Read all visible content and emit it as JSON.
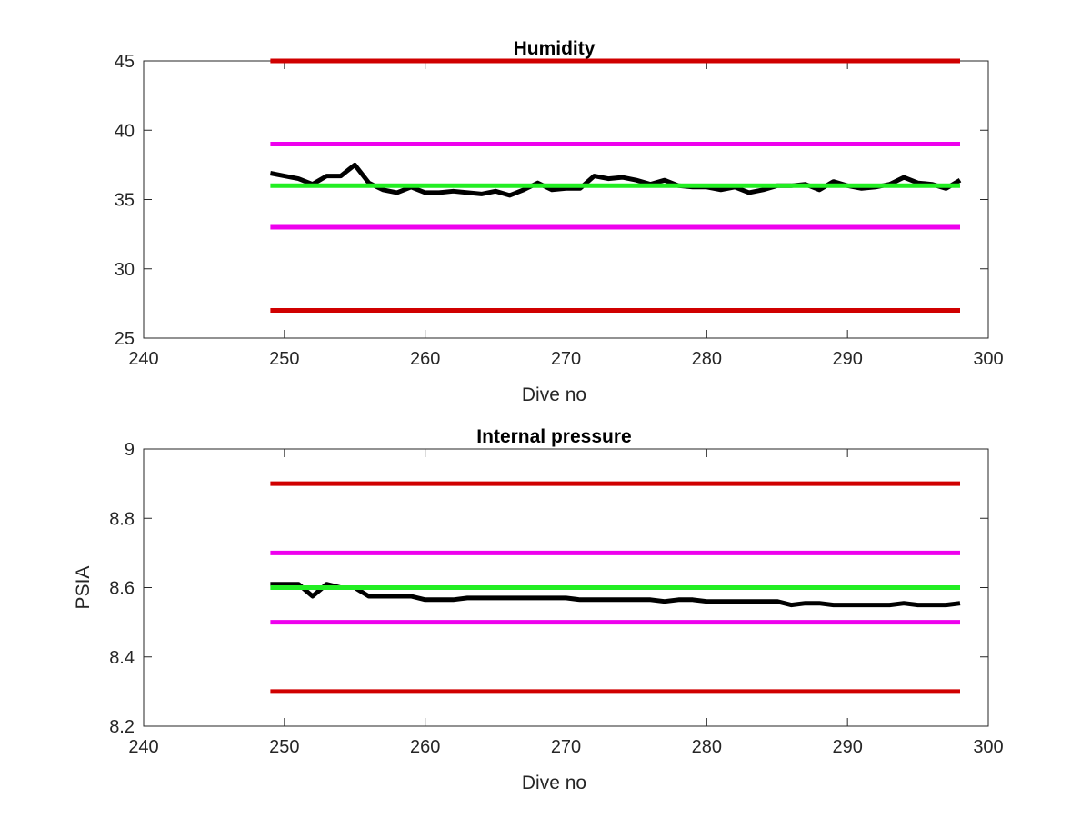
{
  "chart_data": [
    {
      "type": "line",
      "title": "Humidity",
      "xlabel": "Dive no",
      "ylabel": "",
      "xlim": [
        240,
        300
      ],
      "ylim": [
        25,
        45
      ],
      "xticks": [
        "240",
        "250",
        "260",
        "270",
        "280",
        "290",
        "300"
      ],
      "yticks": [
        "25",
        "30",
        "35",
        "40",
        "45"
      ],
      "grid": false,
      "legend": "none",
      "series": [
        {
          "color": "#d00000",
          "x": [
            249,
            298
          ],
          "y": [
            45,
            45
          ]
        },
        {
          "color": "#ee00ee",
          "x": [
            249,
            298
          ],
          "y": [
            39,
            39
          ]
        },
        {
          "color": "#d00000",
          "x": [
            249,
            298
          ],
          "y": [
            27,
            27
          ]
        },
        {
          "color": "#ee00ee",
          "x": [
            249,
            298
          ],
          "y": [
            33,
            33
          ]
        },
        {
          "color": "#000000",
          "x": [
            249,
            250,
            251,
            252,
            253,
            254,
            255,
            256,
            257,
            258,
            259,
            260,
            261,
            262,
            263,
            264,
            265,
            266,
            267,
            268,
            269,
            270,
            271,
            272,
            273,
            274,
            275,
            276,
            277,
            278,
            279,
            280,
            281,
            282,
            283,
            284,
            285,
            286,
            287,
            288,
            289,
            290,
            291,
            292,
            293,
            294,
            295,
            296,
            297,
            298
          ],
          "y": [
            36.9,
            36.7,
            36.5,
            36.1,
            36.7,
            36.7,
            37.5,
            36.2,
            35.7,
            35.5,
            35.9,
            35.5,
            35.5,
            35.6,
            35.5,
            35.4,
            35.6,
            35.3,
            35.7,
            36.2,
            35.7,
            35.8,
            35.8,
            36.7,
            36.5,
            36.6,
            36.4,
            36.1,
            36.4,
            36.0,
            35.9,
            35.9,
            35.7,
            35.9,
            35.5,
            35.7,
            36.0,
            36.0,
            36.1,
            35.7,
            36.3,
            36.0,
            35.8,
            35.9,
            36.1,
            36.6,
            36.2,
            36.1,
            35.8,
            36.4
          ]
        },
        {
          "color": "#22ee22",
          "x": [
            249,
            298
          ],
          "y": [
            36,
            36
          ]
        }
      ]
    },
    {
      "type": "line",
      "title": "Internal pressure",
      "xlabel": "Dive no",
      "ylabel": "PSIA",
      "xlim": [
        240,
        300
      ],
      "ylim": [
        8.2,
        9
      ],
      "xticks": [
        "240",
        "250",
        "260",
        "270",
        "280",
        "290",
        "300"
      ],
      "yticks": [
        "8.2",
        "8.4",
        "8.6",
        "8.8",
        "9"
      ],
      "grid": false,
      "legend": "none",
      "series": [
        {
          "color": "#d00000",
          "x": [
            249,
            298
          ],
          "y": [
            8.9,
            8.9
          ]
        },
        {
          "color": "#ee00ee",
          "x": [
            249,
            298
          ],
          "y": [
            8.7,
            8.7
          ]
        },
        {
          "color": "#d00000",
          "x": [
            249,
            298
          ],
          "y": [
            8.3,
            8.3
          ]
        },
        {
          "color": "#ee00ee",
          "x": [
            249,
            298
          ],
          "y": [
            8.5,
            8.5
          ]
        },
        {
          "color": "#000000",
          "x": [
            249,
            250,
            251,
            252,
            253,
            254,
            255,
            256,
            257,
            258,
            259,
            260,
            261,
            262,
            263,
            264,
            265,
            266,
            267,
            268,
            269,
            270,
            271,
            272,
            273,
            274,
            275,
            276,
            277,
            278,
            279,
            280,
            281,
            282,
            283,
            284,
            285,
            286,
            287,
            288,
            289,
            290,
            291,
            292,
            293,
            294,
            295,
            296,
            297,
            298
          ],
          "y": [
            8.61,
            8.61,
            8.61,
            8.575,
            8.61,
            8.6,
            8.6,
            8.575,
            8.575,
            8.575,
            8.575,
            8.565,
            8.565,
            8.565,
            8.57,
            8.57,
            8.57,
            8.57,
            8.57,
            8.57,
            8.57,
            8.57,
            8.565,
            8.565,
            8.565,
            8.565,
            8.565,
            8.565,
            8.56,
            8.565,
            8.565,
            8.56,
            8.56,
            8.56,
            8.56,
            8.56,
            8.56,
            8.55,
            8.555,
            8.555,
            8.55,
            8.55,
            8.55,
            8.55,
            8.55,
            8.555,
            8.55,
            8.55,
            8.55,
            8.555
          ]
        },
        {
          "color": "#22ee22",
          "x": [
            249,
            298
          ],
          "y": [
            8.6,
            8.6
          ]
        }
      ]
    }
  ]
}
